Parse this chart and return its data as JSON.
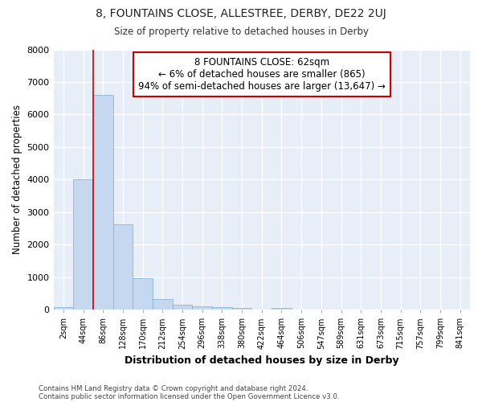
{
  "title_line1": "8, FOUNTAINS CLOSE, ALLESTREE, DERBY, DE22 2UJ",
  "title_line2": "Size of property relative to detached houses in Derby",
  "xlabel": "Distribution of detached houses by size in Derby",
  "ylabel": "Number of detached properties",
  "bar_labels": [
    "2sqm",
    "44sqm",
    "86sqm",
    "128sqm",
    "170sqm",
    "212sqm",
    "254sqm",
    "296sqm",
    "338sqm",
    "380sqm",
    "422sqm",
    "464sqm",
    "506sqm",
    "547sqm",
    "589sqm",
    "631sqm",
    "673sqm",
    "715sqm",
    "757sqm",
    "799sqm",
    "841sqm"
  ],
  "bar_values": [
    80,
    4000,
    6600,
    2620,
    960,
    330,
    140,
    100,
    70,
    60,
    0,
    60,
    0,
    0,
    0,
    0,
    0,
    0,
    0,
    0,
    0
  ],
  "bar_color": "#c5d8f0",
  "bar_edgecolor": "#7aafd4",
  "annotation_text": "8 FOUNTAINS CLOSE: 62sqm\n← 6% of detached houses are smaller (865)\n94% of semi-detached houses are larger (13,647) →",
  "annotation_box_color": "#ffffff",
  "annotation_box_edgecolor": "#cc0000",
  "vline_color": "#cc0000",
  "ylim": [
    0,
    8000
  ],
  "yticks": [
    0,
    1000,
    2000,
    3000,
    4000,
    5000,
    6000,
    7000,
    8000
  ],
  "background_color": "#ffffff",
  "plot_bg_color": "#e8eef8",
  "grid_color": "#ffffff",
  "footer_line1": "Contains HM Land Registry data © Crown copyright and database right 2024.",
  "footer_line2": "Contains public sector information licensed under the Open Government Licence v3.0."
}
